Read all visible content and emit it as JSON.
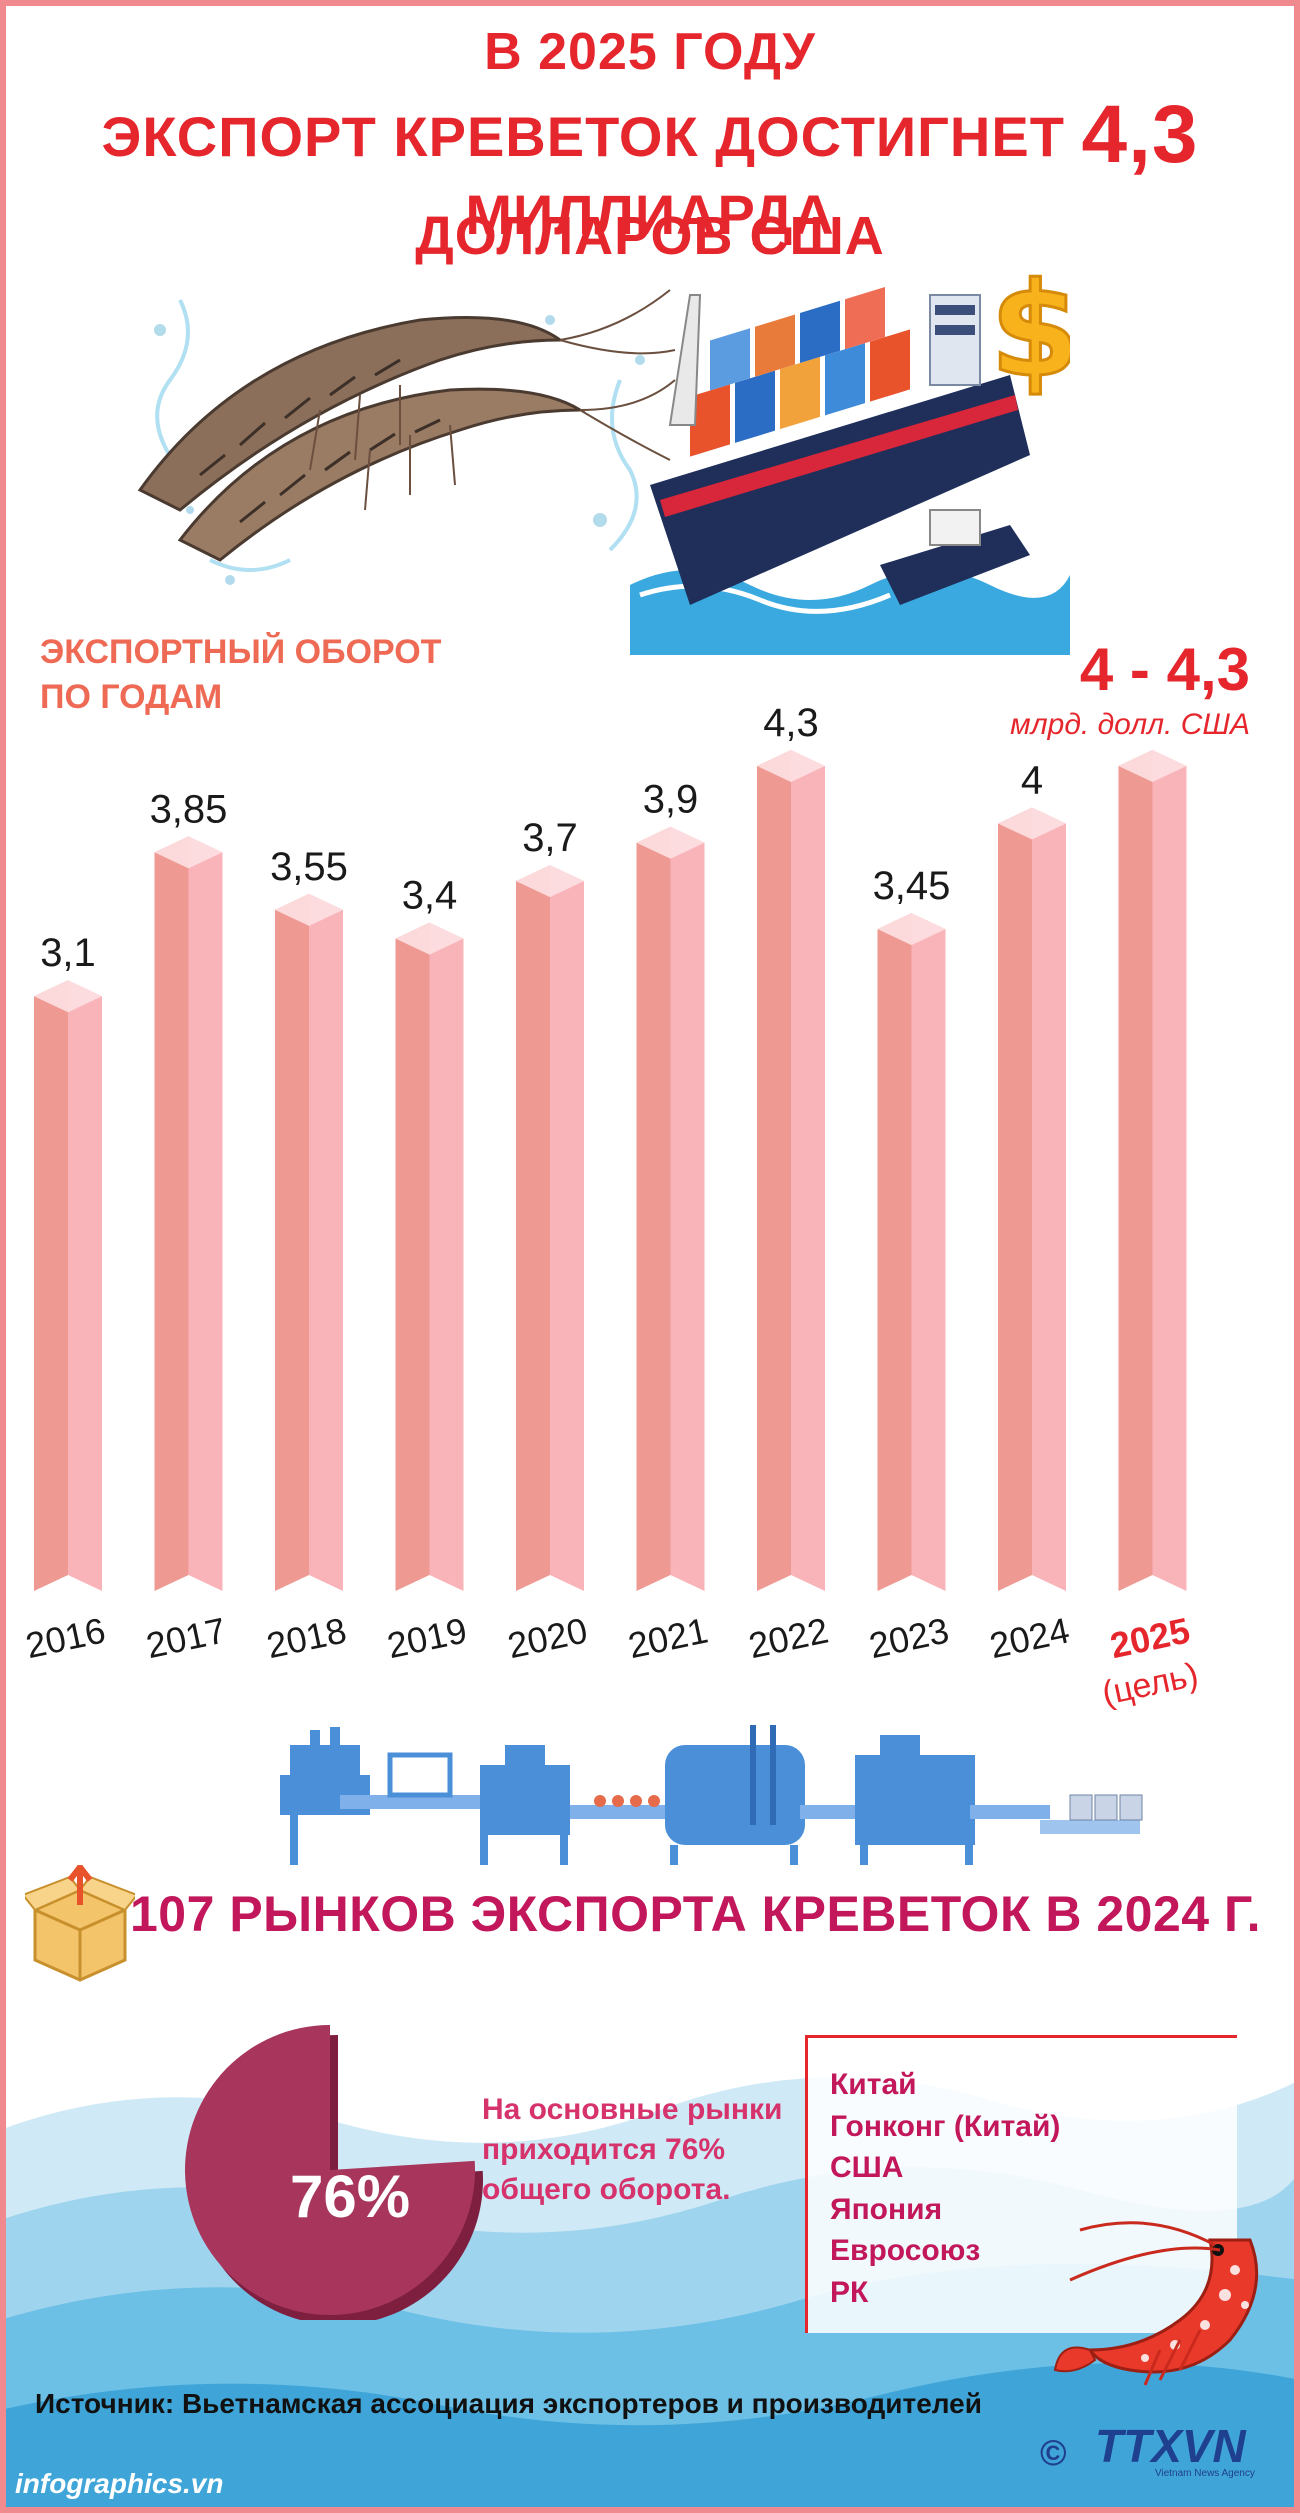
{
  "header": {
    "line1": "В 2025 ГОДУ",
    "line2_pre": "ЭКСПОРТ КРЕВЕТОК ДОСТИГНЕТ ",
    "line2_big": "4,3",
    "line2_post": " МИЛЛИАРДА",
    "line3": "ДОЛЛАРОВ США"
  },
  "section_label": "ЭКСПОРТНЫЙ ОБОРОТ\nПО ГОДАМ",
  "target": {
    "value": "4 - 4,3",
    "unit": "млрд. долл. США"
  },
  "chart_data": {
    "type": "bar",
    "title": "ЭКСПОРТНЫЙ ОБОРОТ ПО ГОДАМ",
    "categories": [
      "2016",
      "2017",
      "2018",
      "2019",
      "2020",
      "2021",
      "2022",
      "2023",
      "2024",
      "2025"
    ],
    "values": [
      3.1,
      3.85,
      3.55,
      3.4,
      3.7,
      3.9,
      4.3,
      3.45,
      4,
      4.3
    ],
    "value_labels": [
      "3,1",
      "3,85",
      "3,55",
      "3,4",
      "3,7",
      "3,9",
      "4,3",
      "3,45",
      "4",
      ""
    ],
    "highlight_category": "2025",
    "highlight_note": "(цель)",
    "unit": "млрд. долл. США",
    "ylim": [
      0,
      4.3
    ],
    "grid": false,
    "legend": "none"
  },
  "markets": {
    "title": "107 РЫНКОВ ЭКСПОРТА КРЕВЕТОК В 2024 Г.",
    "share_percent": 76,
    "share_label": "76%",
    "description": "На основные рынки приходится 76% общего оборота.",
    "list": [
      "Китай",
      "Гонконг (Китай)",
      "США",
      "Япония",
      "Евросоюз",
      "РК"
    ]
  },
  "footer": {
    "source": "Источник: Вьетнамская ассоциация экспортеров и производителей",
    "copyright_symbol": "©",
    "logo_text": "TTXVN",
    "logo_subtext": "Vietnam News Agency",
    "site": "infographics.vn"
  },
  "colors": {
    "title_red": "#e5272d",
    "bar_front": "#f9b4b9",
    "bar_side": "#ee9a92",
    "bar_top": "#fde0e3",
    "accent_magenta": "#c2185b",
    "wave_blue": "#6cbfe5"
  },
  "icons": [
    "shrimp-icon",
    "cargo-ship-icon",
    "dollar-sign-icon",
    "processing-line-icon",
    "box-icon",
    "red-shrimp-icon"
  ]
}
